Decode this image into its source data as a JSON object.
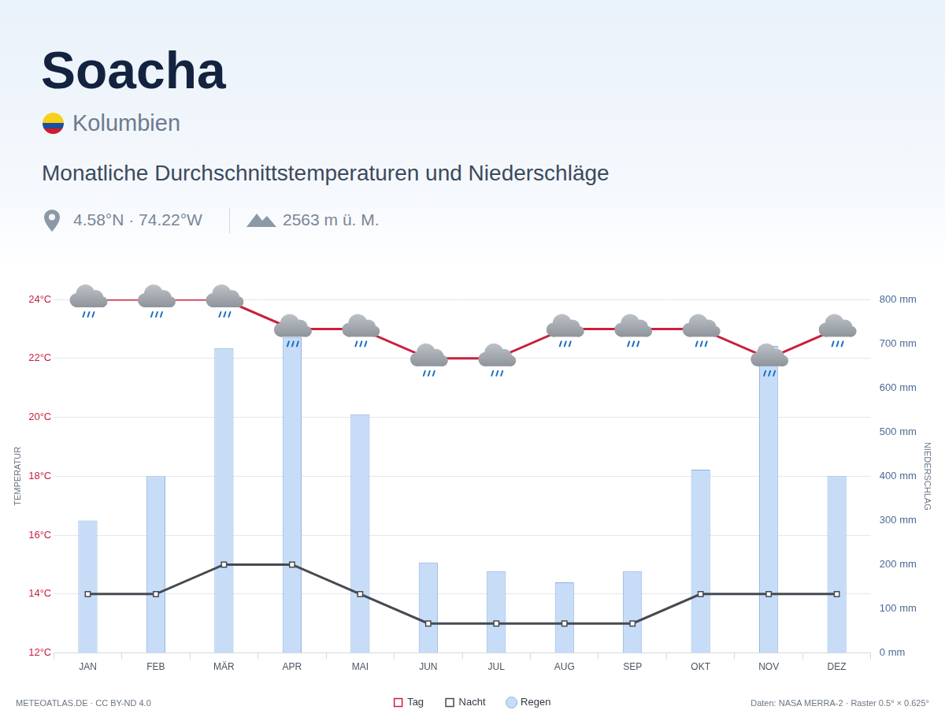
{
  "chart_data": {
    "type": "bar",
    "title": "Soacha",
    "country": "Kolumbien",
    "subtitle": "Monatliche Durchschnittstemperaturen und Niederschläge",
    "coordinates": "4.58°N · 74.22°W",
    "elevation": "2563 m ü. M.",
    "credit": "METEOATLAS.DE · CC BY-ND 4.0",
    "source": "Daten: NASA MERRA-2 · Raster 0.5° × 0.625°",
    "y_label": "TEMPERATUR",
    "y2_label": "NIEDERSCHLAG",
    "categories": [
      "JAN",
      "FEB",
      "MÄR",
      "APR",
      "MAI",
      "JUN",
      "JUL",
      "AUG",
      "SEP",
      "OKT",
      "NOV",
      "DEZ"
    ],
    "series": [
      {
        "name": "Tag",
        "type": "line",
        "color": "#c8203f",
        "marker": "square",
        "values": [
          24,
          24,
          24,
          23,
          23,
          22,
          22,
          23,
          23,
          23,
          22,
          23
        ]
      },
      {
        "name": "Nacht",
        "type": "line",
        "color": "#464a50",
        "marker": "square",
        "values": [
          14,
          14,
          15,
          15,
          14,
          13,
          13,
          13,
          13,
          14,
          14,
          14
        ]
      },
      {
        "name": "Regen",
        "type": "bar",
        "axis": "y2",
        "color": "#c6dcf7",
        "values": [
          300,
          400,
          690,
          715,
          540,
          205,
          185,
          160,
          185,
          415,
          695,
          400
        ]
      }
    ],
    "ylim": [
      12,
      24
    ],
    "yticks": [
      {
        "value": 12,
        "label": "12°C"
      },
      {
        "value": 14,
        "label": "14°C"
      },
      {
        "value": 16,
        "label": "16°C"
      },
      {
        "value": 18,
        "label": "18°C"
      },
      {
        "value": 20,
        "label": "20°C"
      },
      {
        "value": 22,
        "label": "22°C"
      },
      {
        "value": 24,
        "label": "24°C"
      }
    ],
    "y2lim": [
      0,
      800
    ],
    "y2ticks": [
      {
        "value": 0,
        "label": "0 mm"
      },
      {
        "value": 100,
        "label": "100 mm"
      },
      {
        "value": 200,
        "label": "200 mm"
      },
      {
        "value": 300,
        "label": "300 mm"
      },
      {
        "value": 400,
        "label": "400 mm"
      },
      {
        "value": 500,
        "label": "500 mm"
      },
      {
        "value": 600,
        "label": "600 mm"
      },
      {
        "value": 700,
        "label": "700 mm"
      },
      {
        "value": 800,
        "label": "800 mm"
      }
    ],
    "grid": true,
    "legend": "bottom"
  }
}
